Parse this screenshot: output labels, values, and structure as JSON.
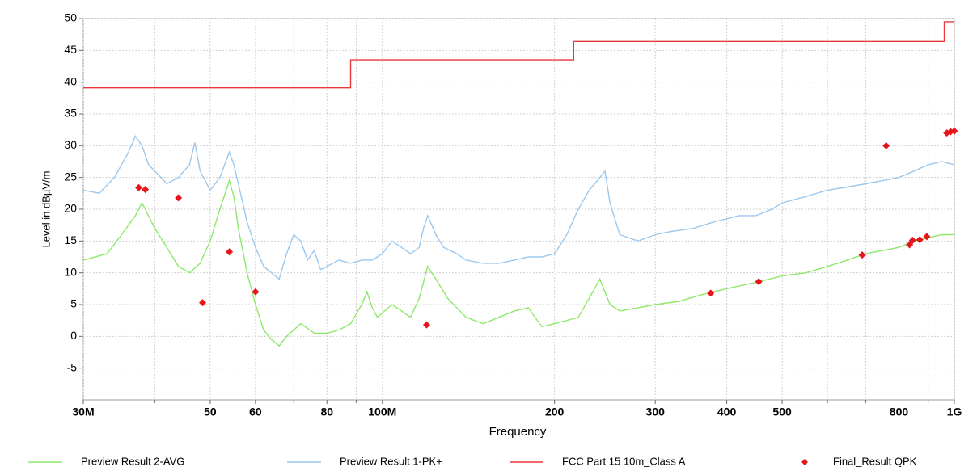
{
  "chart_data": {
    "type": "line",
    "xlabel": "Frequency",
    "ylabel": "Level in dBµV/m",
    "xscale": "log",
    "xlim": [
      30,
      1000
    ],
    "ylim": [
      -10,
      50
    ],
    "xticks": [
      {
        "value": 30,
        "label": "30M"
      },
      50,
      60,
      80,
      {
        "value": 100,
        "label": "100M"
      },
      200,
      300,
      400,
      500,
      800,
      {
        "value": 1000,
        "label": "1G"
      }
    ],
    "xminorticks": [
      40,
      70,
      90,
      600,
      700,
      900
    ],
    "yticks": [
      -5,
      0,
      5,
      10,
      15,
      20,
      25,
      30,
      35,
      40,
      45,
      50
    ],
    "grid": true,
    "legend": "bottom",
    "series": [
      {
        "name": "Preview Result 2-AVG",
        "color": "#8ee86a",
        "x": [
          30,
          33,
          35,
          37,
          38,
          40,
          42,
          44,
          46,
          48,
          50,
          52,
          54,
          55,
          56,
          58,
          60,
          62,
          64,
          66,
          68,
          70,
          72,
          76,
          80,
          84,
          88,
          92,
          94,
          96,
          98,
          104,
          108,
          112,
          116,
          120,
          124,
          130,
          140,
          150,
          160,
          170,
          180,
          190,
          200,
          210,
          220,
          230,
          240,
          250,
          260,
          280,
          300,
          330,
          360,
          400,
          450,
          500,
          550,
          600,
          650,
          700,
          750,
          800,
          850,
          900,
          950,
          1000
        ],
        "values": [
          12,
          13,
          16,
          19,
          21,
          17,
          14,
          11,
          10,
          11.5,
          15,
          20,
          24.5,
          22,
          17,
          10,
          5,
          1,
          -0.5,
          -1.5,
          0,
          1,
          2,
          0.5,
          0.5,
          1,
          2,
          5,
          7,
          4.5,
          3,
          5,
          4,
          3,
          6,
          11,
          9,
          6,
          3,
          2,
          3,
          4,
          4.5,
          1.5,
          2,
          2.5,
          3,
          6,
          9,
          5,
          4,
          4.5,
          5,
          5.5,
          6.5,
          7.5,
          8.5,
          9.5,
          10,
          11,
          12,
          13,
          13.5,
          14,
          15,
          15.5,
          16,
          16
        ]
      },
      {
        "name": "Preview Result 1-PK+",
        "color": "#9cc8ee",
        "x": [
          30,
          32,
          34,
          35,
          36,
          37,
          38,
          39,
          40,
          42,
          44,
          46,
          47,
          48,
          50,
          52,
          54,
          55,
          56,
          58,
          60,
          62,
          64,
          66,
          68,
          70,
          72,
          74,
          76,
          78,
          80,
          84,
          88,
          92,
          96,
          100,
          104,
          108,
          112,
          116,
          118,
          120,
          124,
          128,
          135,
          140,
          150,
          160,
          170,
          180,
          190,
          200,
          210,
          220,
          230,
          240,
          245,
          250,
          260,
          280,
          300,
          320,
          350,
          380,
          400,
          420,
          450,
          480,
          500,
          550,
          600,
          650,
          700,
          750,
          800,
          850,
          900,
          950,
          1000
        ],
        "values": [
          23,
          22.5,
          25,
          27,
          29,
          31.5,
          30,
          27,
          26,
          24,
          25,
          27,
          30.5,
          26,
          23,
          25,
          29,
          27,
          24,
          18,
          14,
          11,
          10,
          9,
          13,
          16,
          15,
          12,
          13.5,
          10.5,
          11,
          12,
          11.5,
          12,
          12,
          13,
          15,
          14,
          13,
          14,
          17,
          19,
          16,
          14,
          13,
          12,
          11.5,
          11.5,
          12,
          12.5,
          12.5,
          13,
          16,
          20,
          23,
          25,
          26,
          21,
          16,
          15,
          16,
          16.5,
          17,
          18,
          18.5,
          19,
          19,
          20,
          21,
          22,
          23,
          23.5,
          24,
          24.5,
          25,
          26,
          27,
          27.5,
          27
        ]
      },
      {
        "name": "FCC Part 15 10m_Class A",
        "color": "#e8383c",
        "x": [
          30,
          88,
          88,
          216,
          216,
          960,
          960,
          1000
        ],
        "values": [
          39.1,
          39.1,
          43.5,
          43.5,
          46.4,
          46.4,
          49.5,
          49.5
        ]
      },
      {
        "name": "Final_Result QPK",
        "color": "#e8141c",
        "mode": "markers",
        "x": [
          37.5,
          38.5,
          44,
          48.5,
          54,
          60,
          119.5,
          375,
          455,
          690,
          760,
          835,
          845,
          870,
          895,
          970,
          985,
          1000
        ],
        "values": [
          23.4,
          23.1,
          21.8,
          5.3,
          13.3,
          7.0,
          1.8,
          6.8,
          8.6,
          12.8,
          30.0,
          14.4,
          15.1,
          15.2,
          15.7,
          32.0,
          32.2,
          32.3
        ]
      }
    ]
  }
}
